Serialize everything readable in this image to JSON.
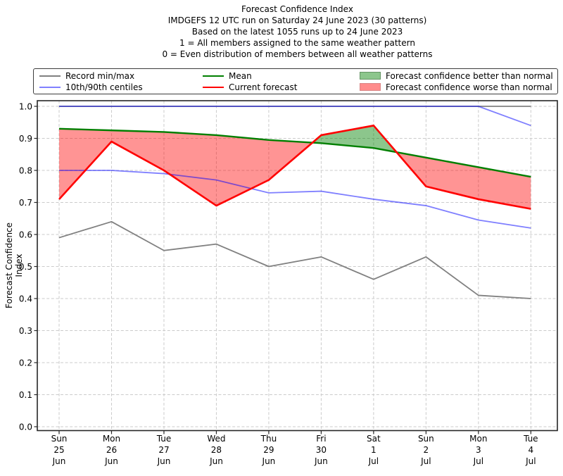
{
  "chart_data": {
    "type": "line",
    "title": "Forecast Confidence Index",
    "title_lines": [
      "Forecast Confidence Index",
      "IMDGEFS 12 UTC run on Saturday 24 June 2023 (30 patterns)",
      "Based on the latest 1055 runs up to 24 June 2023",
      "1 = All members assigned to the same weather pattern",
      "0 = Even distribution of members between all weather patterns"
    ],
    "xlabel": "",
    "ylabel": "Forecast Confidence Index",
    "ylim": [
      0.0,
      1.0
    ],
    "grid": true,
    "legend_position": "top",
    "ytick_labels": [
      "1.0",
      "0.9",
      "0.8",
      "0.7",
      "0.6",
      "0.5",
      "0.4",
      "0.3",
      "0.2",
      "0.1",
      "0.0"
    ],
    "categories": [
      {
        "day": "Sun",
        "date": "25",
        "month": "Jun"
      },
      {
        "day": "Mon",
        "date": "26",
        "month": "Jun"
      },
      {
        "day": "Tue",
        "date": "27",
        "month": "Jun"
      },
      {
        "day": "Wed",
        "date": "28",
        "month": "Jun"
      },
      {
        "day": "Thu",
        "date": "29",
        "month": "Jun"
      },
      {
        "day": "Fri",
        "date": "30",
        "month": "Jun"
      },
      {
        "day": "Sat",
        "date": "1",
        "month": "Jul"
      },
      {
        "day": "Sun",
        "date": "2",
        "month": "Jul"
      },
      {
        "day": "Mon",
        "date": "3",
        "month": "Jul"
      },
      {
        "day": "Tue",
        "date": "4",
        "month": "Jul"
      }
    ],
    "series": [
      {
        "name": "Record max",
        "legend": "Record min/max",
        "color": "#808080",
        "width": 1.8,
        "opacity": 1,
        "values": [
          1.0,
          1.0,
          1.0,
          1.0,
          1.0,
          1.0,
          1.0,
          1.0,
          1.0,
          1.0
        ]
      },
      {
        "name": "Record min",
        "legend": "Record min/max",
        "color": "#808080",
        "width": 1.8,
        "opacity": 1,
        "values": [
          0.59,
          0.64,
          0.55,
          0.57,
          0.5,
          0.53,
          0.46,
          0.53,
          0.41,
          0.4
        ]
      },
      {
        "name": "90th centile",
        "legend": "10th/90th centiles",
        "color": "#0000ff",
        "width": 1.8,
        "opacity": 0.5,
        "values": [
          1.0,
          1.0,
          1.0,
          1.0,
          1.0,
          1.0,
          1.0,
          1.0,
          1.0,
          0.94
        ]
      },
      {
        "name": "10th centile",
        "legend": "10th/90th centiles",
        "color": "#0000ff",
        "width": 1.8,
        "opacity": 0.5,
        "values": [
          0.8,
          0.8,
          0.79,
          0.77,
          0.73,
          0.735,
          0.71,
          0.69,
          0.645,
          0.62
        ]
      },
      {
        "name": "Mean",
        "legend": "Mean",
        "color": "#007f00",
        "width": 2.4,
        "opacity": 1,
        "values": [
          0.93,
          0.925,
          0.92,
          0.91,
          0.895,
          0.885,
          0.87,
          0.84,
          0.81,
          0.78
        ]
      },
      {
        "name": "Current forecast",
        "legend": "Current forecast",
        "color": "#ff0000",
        "width": 2.6,
        "opacity": 1,
        "values": [
          0.71,
          0.89,
          0.8,
          0.69,
          0.77,
          0.91,
          0.94,
          0.75,
          0.71,
          0.68
        ]
      }
    ],
    "fill_between": {
      "upper_series": "Mean",
      "lower_series": "Current forecast",
      "better_label": "Forecast confidence better than normal",
      "better_color": "rgba(0,128,0,0.45)",
      "worse_label": "Forecast confidence worse than normal",
      "worse_color": "rgba(255,0,0,0.42)"
    }
  },
  "legend": {
    "items": [
      {
        "label": "Record min/max",
        "type": "line",
        "color": "#808080"
      },
      {
        "label": "10th/90th centiles",
        "type": "line",
        "color": "#8080ff"
      },
      {
        "label": "Mean",
        "type": "line",
        "color": "#007f00"
      },
      {
        "label": "Current forecast",
        "type": "line",
        "color": "#ff0000"
      },
      {
        "label": "Forecast confidence better than normal",
        "type": "patch",
        "color": "rgba(0,128,0,0.45)",
        "edge": "#649464"
      },
      {
        "label": "Forecast confidence worse than normal",
        "type": "patch",
        "color": "rgba(255,0,0,0.45)",
        "edge": "#d98585"
      }
    ]
  }
}
